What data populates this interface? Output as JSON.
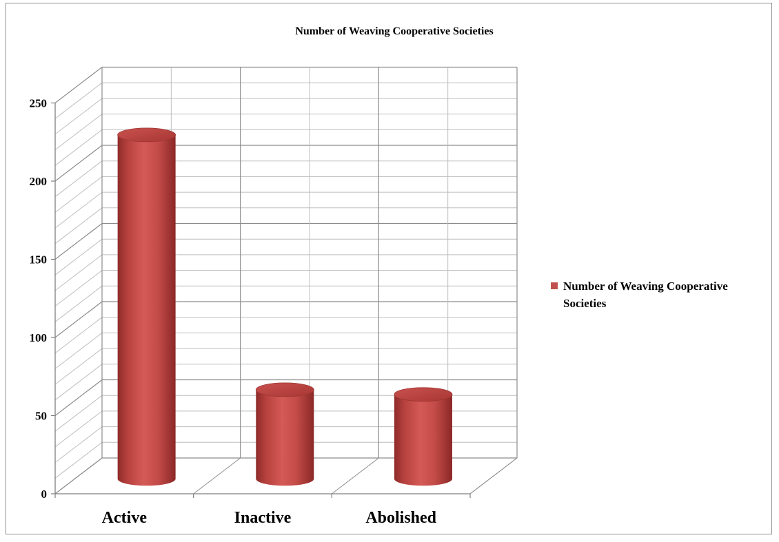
{
  "chart_data": {
    "type": "bar",
    "style": "3d-cylinder",
    "title": "Number of Weaving Cooperative Societies",
    "xlabel": "",
    "ylabel": "",
    "categories": [
      "Active",
      "Inactive",
      "Abolished"
    ],
    "series": [
      {
        "name": "Number of Weaving Cooperative Societies",
        "values": [
          220,
          57,
          54
        ],
        "color": "#c0504d"
      }
    ],
    "ylim": [
      0,
      250
    ],
    "yticks": [
      0,
      50,
      100,
      150,
      200,
      250
    ],
    "grid": true,
    "legend_position": "right",
    "legend": {
      "line1": "Number of Weaving Cooperative",
      "line2": "Societies"
    }
  }
}
